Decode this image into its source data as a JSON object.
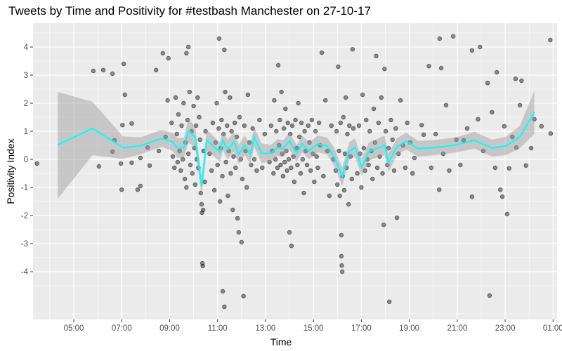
{
  "chart_data": {
    "type": "scatter",
    "title": "Tweets by Time and Positivity for #testbash Manchester on 27-10-17",
    "xlabel": "Time",
    "ylabel": "Positivity Index",
    "xlim": [
      "03:18",
      "01:10"
    ],
    "ylim": [
      -5.7,
      4.85
    ],
    "x_ticks": [
      "05:00",
      "07:00",
      "09:00",
      "11:00",
      "13:00",
      "15:00",
      "17:00",
      "19:00",
      "21:00",
      "23:00",
      "01:00"
    ],
    "y_ticks": [
      "-4",
      "-3",
      "-2",
      "-1",
      "0",
      "1",
      "2",
      "3",
      "4"
    ],
    "grid": true,
    "legend": "none",
    "colors": {
      "points": "#000000",
      "smooth_line": "#00FFFF",
      "ribbon": "#C8C8C8",
      "panel": "#EBEBEB"
    },
    "points": [
      [
        "03:28",
        -0.15
      ],
      [
        "05:49",
        3.15
      ],
      [
        "06:14",
        3.18
      ],
      [
        "06:37",
        3.05
      ],
      [
        "07:05",
        3.4
      ],
      [
        "07:08",
        2.3
      ],
      [
        "08:26",
        3.18
      ],
      [
        "08:43",
        3.78
      ],
      [
        "08:57",
        3.6
      ],
      [
        "09:47",
        4.0
      ],
      [
        "09:42",
        3.78
      ],
      [
        "06:03",
        -0.25
      ],
      [
        "06:37",
        0.28
      ],
      [
        "07:00",
        -1.08
      ],
      [
        "07:40",
        -1.08
      ],
      [
        "07:47",
        -0.95
      ],
      [
        "07:02",
        1.22
      ],
      [
        "07:25",
        1.28
      ],
      [
        "06:42",
        0.68
      ],
      [
        "06:58",
        -0.15
      ],
      [
        "07:25",
        -0.12
      ],
      [
        "07:47",
        0.05
      ],
      [
        "08:05",
        0.42
      ],
      [
        "08:10",
        -0.22
      ],
      [
        "08:33",
        0.3
      ],
      [
        "08:50",
        0.8
      ],
      [
        "08:55",
        2.1
      ],
      [
        "09:05",
        1.3
      ],
      [
        "09:08",
        0.1
      ],
      [
        "09:12",
        -0.3
      ],
      [
        "09:15",
        2.2
      ],
      [
        "09:18",
        0.9
      ],
      [
        "09:20",
        -0.1
      ],
      [
        "09:22",
        1.6
      ],
      [
        "09:25",
        0.3
      ],
      [
        "09:28",
        -0.4
      ],
      [
        "09:30",
        1.2
      ],
      [
        "09:33",
        0.0
      ],
      [
        "09:35",
        2.0
      ],
      [
        "09:38",
        -0.7
      ],
      [
        "09:40",
        0.6
      ],
      [
        "09:42",
        -1.0
      ],
      [
        "09:45",
        1.4
      ],
      [
        "09:47",
        0.2
      ],
      [
        "09:50",
        2.4
      ],
      [
        "09:52",
        -0.2
      ],
      [
        "09:55",
        1.0
      ],
      [
        "09:57",
        -0.5
      ],
      [
        "10:00",
        1.9
      ],
      [
        "10:02",
        0.4
      ],
      [
        "10:04",
        -0.9
      ],
      [
        "10:06",
        1.2
      ],
      [
        "10:08",
        0.0
      ],
      [
        "10:10",
        2.2
      ],
      [
        "10:12",
        -0.3
      ],
      [
        "10:14",
        1.5
      ],
      [
        "10:16",
        0.7
      ],
      [
        "10:18",
        -1.2
      ],
      [
        "10:20",
        -1.6
      ],
      [
        "10:21",
        -1.9
      ],
      [
        "10:22",
        -3.7
      ],
      [
        "10:23",
        -3.8
      ],
      [
        "10:24",
        -1.8
      ],
      [
        "10:25",
        0.3
      ],
      [
        "10:28",
        -0.8
      ],
      [
        "10:30",
        1.0
      ],
      [
        "10:40",
        0.2
      ],
      [
        "10:45",
        -0.4
      ],
      [
        "10:48",
        1.3
      ],
      [
        "10:52",
        -1.1
      ],
      [
        "10:55",
        0.6
      ],
      [
        "10:58",
        2.0
      ],
      [
        "11:00",
        -0.2
      ],
      [
        "11:03",
        1.1
      ],
      [
        "11:04",
        4.3
      ],
      [
        "11:06",
        -1.5
      ],
      [
        "11:08",
        0.4
      ],
      [
        "11:10",
        1.4
      ],
      [
        "11:12",
        -0.6
      ],
      [
        "11:13",
        -4.7
      ],
      [
        "11:15",
        0.9
      ],
      [
        "11:17",
        -5.25
      ],
      [
        "11:17",
        3.9
      ],
      [
        "11:19",
        2.4
      ],
      [
        "11:21",
        -0.1
      ],
      [
        "11:24",
        1.2
      ],
      [
        "11:26",
        -1.3
      ],
      [
        "11:28",
        0.3
      ],
      [
        "11:31",
        2.2
      ],
      [
        "11:33",
        -0.5
      ],
      [
        "11:35",
        1.0
      ],
      [
        "11:38",
        -1.8
      ],
      [
        "11:40",
        0.1
      ],
      [
        "11:43",
        1.3
      ],
      [
        "11:45",
        -0.3
      ],
      [
        "11:48",
        0.8
      ],
      [
        "11:50",
        -2.1
      ],
      [
        "11:53",
        -2.6
      ],
      [
        "11:55",
        1.5
      ],
      [
        "11:58",
        0.0
      ],
      [
        "12:00",
        -2.95
      ],
      [
        "12:02",
        -0.7
      ],
      [
        "12:05",
        -4.87
      ],
      [
        "12:07",
        1.2
      ],
      [
        "12:10",
        0.3
      ],
      [
        "12:13",
        -1.0
      ],
      [
        "12:16",
        2.3
      ],
      [
        "12:20",
        0.6
      ],
      [
        "12:24",
        -0.2
      ],
      [
        "12:28",
        1.1
      ],
      [
        "12:32",
        0.0
      ],
      [
        "12:38",
        -0.4
      ],
      [
        "12:45",
        1.4
      ],
      [
        "12:52",
        -0.3
      ],
      [
        "12:58",
        0.9
      ],
      [
        "13:10",
        -0.1
      ],
      [
        "13:14",
        1.2
      ],
      [
        "13:17",
        0.3
      ],
      [
        "13:20",
        -0.5
      ],
      [
        "13:22",
        2.1
      ],
      [
        "13:25",
        0.0
      ],
      [
        "13:27",
        1.0
      ],
      [
        "13:30",
        -0.3
      ],
      [
        "13:32",
        3.35
      ],
      [
        "13:34",
        0.5
      ],
      [
        "13:36",
        1.4
      ],
      [
        "13:38",
        -0.2
      ],
      [
        "13:40",
        2.4
      ],
      [
        "13:42",
        0.2
      ],
      [
        "13:44",
        -0.6
      ],
      [
        "13:46",
        1.1
      ],
      [
        "13:48",
        -0.1
      ],
      [
        "13:50",
        1.8
      ],
      [
        "13:52",
        0.3
      ],
      [
        "13:54",
        -0.4
      ],
      [
        "13:56",
        1.3
      ],
      [
        "13:58",
        0.0
      ],
      [
        "14:00",
        -2.6
      ],
      [
        "14:02",
        0.9
      ],
      [
        "14:04",
        -0.3
      ],
      [
        "14:05",
        -3.08
      ],
      [
        "14:07",
        1.2
      ],
      [
        "14:10",
        0.1
      ],
      [
        "14:12",
        -0.8
      ],
      [
        "14:15",
        1.4
      ],
      [
        "14:18",
        0.4
      ],
      [
        "14:20",
        -0.2
      ],
      [
        "14:22",
        2.0
      ],
      [
        "14:25",
        0.8
      ],
      [
        "14:28",
        -0.5
      ],
      [
        "14:30",
        1.3
      ],
      [
        "14:33",
        0.0
      ],
      [
        "14:36",
        -1.2
      ],
      [
        "14:38",
        1.0
      ],
      [
        "14:41",
        0.3
      ],
      [
        "14:44",
        -0.2
      ],
      [
        "14:47",
        1.2
      ],
      [
        "14:50",
        0.6
      ],
      [
        "14:53",
        -0.4
      ],
      [
        "14:56",
        1.4
      ],
      [
        "14:59",
        0.2
      ],
      [
        "15:02",
        -0.8
      ],
      [
        "15:05",
        1.0
      ],
      [
        "15:08",
        0.1
      ],
      [
        "15:11",
        -0.3
      ],
      [
        "15:14",
        1.3
      ],
      [
        "15:17",
        0.5
      ],
      [
        "15:21",
        3.8
      ],
      [
        "15:25",
        -0.6
      ],
      [
        "15:30",
        2.1
      ],
      [
        "15:35",
        0.3
      ],
      [
        "15:40",
        -1.3
      ],
      [
        "15:45",
        1.2
      ],
      [
        "15:50",
        0.0
      ],
      [
        "15:56",
        -0.4
      ],
      [
        "15:58",
        1.0
      ],
      [
        "16:00",
        -0.9
      ],
      [
        "16:02",
        3.3
      ],
      [
        "16:04",
        0.3
      ],
      [
        "16:06",
        -1.3
      ],
      [
        "16:08",
        1.3
      ],
      [
        "16:10",
        -2.7
      ],
      [
        "16:10",
        -3.45
      ],
      [
        "16:11",
        -3.78
      ],
      [
        "16:12",
        -4.0
      ],
      [
        "16:13",
        -0.6
      ],
      [
        "16:15",
        1.5
      ],
      [
        "16:17",
        -1.1
      ],
      [
        "16:19",
        0.2
      ],
      [
        "16:21",
        2.2
      ],
      [
        "16:23",
        -0.3
      ],
      [
        "16:25",
        0.9
      ],
      [
        "16:28",
        -1.6
      ],
      [
        "16:30",
        1.2
      ],
      [
        "16:33",
        0.1
      ],
      [
        "16:36",
        -0.7
      ],
      [
        "16:38",
        3.92
      ],
      [
        "16:40",
        1.1
      ],
      [
        "16:50",
        -0.5
      ],
      [
        "16:54",
        1.2
      ],
      [
        "16:57",
        0.2
      ],
      [
        "17:00",
        -1.0
      ],
      [
        "17:03",
        2.3
      ],
      [
        "17:06",
        0.4
      ],
      [
        "17:09",
        -0.4
      ],
      [
        "17:12",
        1.4
      ],
      [
        "17:15",
        0.0
      ],
      [
        "17:18",
        -0.2
      ],
      [
        "17:21",
        1.0
      ],
      [
        "17:25",
        0.3
      ],
      [
        "17:28",
        -0.7
      ],
      [
        "17:31",
        1.8
      ],
      [
        "17:34",
        0.6
      ],
      [
        "17:37",
        3.68
      ],
      [
        "17:40",
        -0.3
      ],
      [
        "17:43",
        1.3
      ],
      [
        "17:46",
        0.1
      ],
      [
        "17:50",
        2.2
      ],
      [
        "17:53",
        -0.5
      ],
      [
        "17:56",
        -2.33
      ],
      [
        "17:58",
        3.22
      ],
      [
        "18:01",
        1.0
      ],
      [
        "18:05",
        -0.2
      ],
      [
        "18:08",
        0.4
      ],
      [
        "18:10",
        -5.07
      ],
      [
        "18:14",
        1.4
      ],
      [
        "18:18",
        0.7
      ],
      [
        "18:22",
        -0.4
      ],
      [
        "18:26",
        1.1
      ],
      [
        "18:29",
        -2.08
      ],
      [
        "18:33",
        0.2
      ],
      [
        "18:38",
        2.1
      ],
      [
        "18:44",
        0.5
      ],
      [
        "18:50",
        -0.3
      ],
      [
        "18:55",
        1.3
      ],
      [
        "19:02",
        0.6
      ],
      [
        "19:08",
        -0.5
      ],
      [
        "19:13",
        0.05
      ],
      [
        "19:31",
        1.22
      ],
      [
        "19:36",
        0.88
      ],
      [
        "19:49",
        3.32
      ],
      [
        "19:55",
        -0.3
      ],
      [
        "20:06",
        0.9
      ],
      [
        "20:16",
        4.3
      ],
      [
        "20:20",
        3.25
      ],
      [
        "20:15",
        -1.08
      ],
      [
        "20:25",
        0.2
      ],
      [
        "20:32",
        1.93
      ],
      [
        "20:40",
        -0.4
      ],
      [
        "20:50",
        4.38
      ],
      [
        "20:58",
        0.7
      ],
      [
        "21:08",
        -0.2
      ],
      [
        "21:16",
        0.68
      ],
      [
        "21:25",
        1.1
      ],
      [
        "21:37",
        3.88
      ],
      [
        "21:37",
        -1.33
      ],
      [
        "21:52",
        1.43
      ],
      [
        "21:57",
        4.0
      ],
      [
        "22:05",
        0.3
      ],
      [
        "22:16",
        2.72
      ],
      [
        "22:21",
        -4.85
      ],
      [
        "22:27",
        1.68
      ],
      [
        "22:35",
        -0.3
      ],
      [
        "22:39",
        3.1
      ],
      [
        "22:48",
        -1.08
      ],
      [
        "22:53",
        -1.33
      ],
      [
        "22:58",
        1.18
      ],
      [
        "23:05",
        -1.95
      ],
      [
        "23:10",
        -0.32
      ],
      [
        "23:18",
        0.8
      ],
      [
        "23:26",
        2.87
      ],
      [
        "23:28",
        0.42
      ],
      [
        "23:37",
        1.93
      ],
      [
        "23:41",
        2.8
      ],
      [
        "23:52",
        -0.22
      ],
      [
        "00:05",
        0.4
      ],
      [
        "00:13",
        1.43
      ],
      [
        "00:31",
        1.18
      ],
      [
        "00:53",
        4.25
      ],
      [
        "00:54",
        0.92
      ]
    ],
    "smooth": {
      "x": [
        "04:20",
        "05:47",
        "07:03",
        "07:47",
        "08:40",
        "09:07",
        "09:20",
        "09:36",
        "09:47",
        "10:04",
        "10:20",
        "10:33",
        "10:48",
        "11:06",
        "11:13",
        "11:25",
        "11:41",
        "11:53",
        "12:08",
        "12:22",
        "12:32",
        "12:50",
        "13:14",
        "13:30",
        "13:44",
        "14:00",
        "14:18",
        "14:32",
        "14:49",
        "15:11",
        "15:34",
        "15:51",
        "16:12",
        "16:30",
        "16:44",
        "17:01",
        "17:19",
        "17:37",
        "17:58",
        "18:08",
        "18:29",
        "18:52",
        "19:22",
        "20:06",
        "20:59",
        "21:43",
        "22:27",
        "23:02",
        "23:37",
        "00:13"
      ],
      "y": [
        0.52,
        1.1,
        0.42,
        0.48,
        0.75,
        0.62,
        0.4,
        0.42,
        1.02,
        0.78,
        -0.95,
        0.68,
        0.5,
        0.25,
        0.68,
        0.35,
        0.62,
        0.18,
        0.5,
        0.18,
        0.8,
        0.22,
        0.22,
        0.42,
        0.38,
        0.65,
        0.22,
        0.55,
        0.3,
        0.55,
        0.48,
        0.12,
        -0.62,
        0.3,
        0.42,
        -0.28,
        0.28,
        0.38,
        0.5,
        -0.12,
        0.45,
        0.65,
        0.38,
        0.42,
        0.52,
        0.68,
        0.4,
        0.48,
        0.8,
        1.68
      ],
      "lo": [
        -1.4,
        0.15,
        0.02,
        0.18,
        0.45,
        0.3,
        0.05,
        0.07,
        0.6,
        0.4,
        -1.3,
        0.3,
        0.15,
        -0.1,
        0.33,
        0.0,
        0.27,
        -0.17,
        0.15,
        -0.17,
        0.45,
        -0.13,
        -0.08,
        0.12,
        0.08,
        0.35,
        -0.08,
        0.25,
        0.0,
        0.25,
        0.18,
        -0.2,
        -0.95,
        -0.02,
        0.1,
        -0.6,
        -0.05,
        0.05,
        0.15,
        -0.45,
        0.15,
        0.35,
        0.1,
        0.15,
        0.25,
        0.38,
        0.1,
        0.15,
        0.4,
        0.9
      ],
      "hi": [
        2.4,
        2.05,
        0.82,
        0.78,
        1.05,
        0.94,
        0.75,
        0.77,
        1.44,
        1.16,
        -0.6,
        1.06,
        0.85,
        0.6,
        1.03,
        0.7,
        0.97,
        0.53,
        0.85,
        0.53,
        1.15,
        0.57,
        0.52,
        0.72,
        0.68,
        0.95,
        0.52,
        0.85,
        0.6,
        0.85,
        0.78,
        0.44,
        -0.29,
        0.62,
        0.74,
        0.04,
        0.61,
        0.71,
        0.85,
        0.21,
        0.75,
        0.95,
        0.66,
        0.69,
        0.79,
        0.98,
        0.7,
        0.81,
        1.2,
        2.45
      ]
    }
  }
}
